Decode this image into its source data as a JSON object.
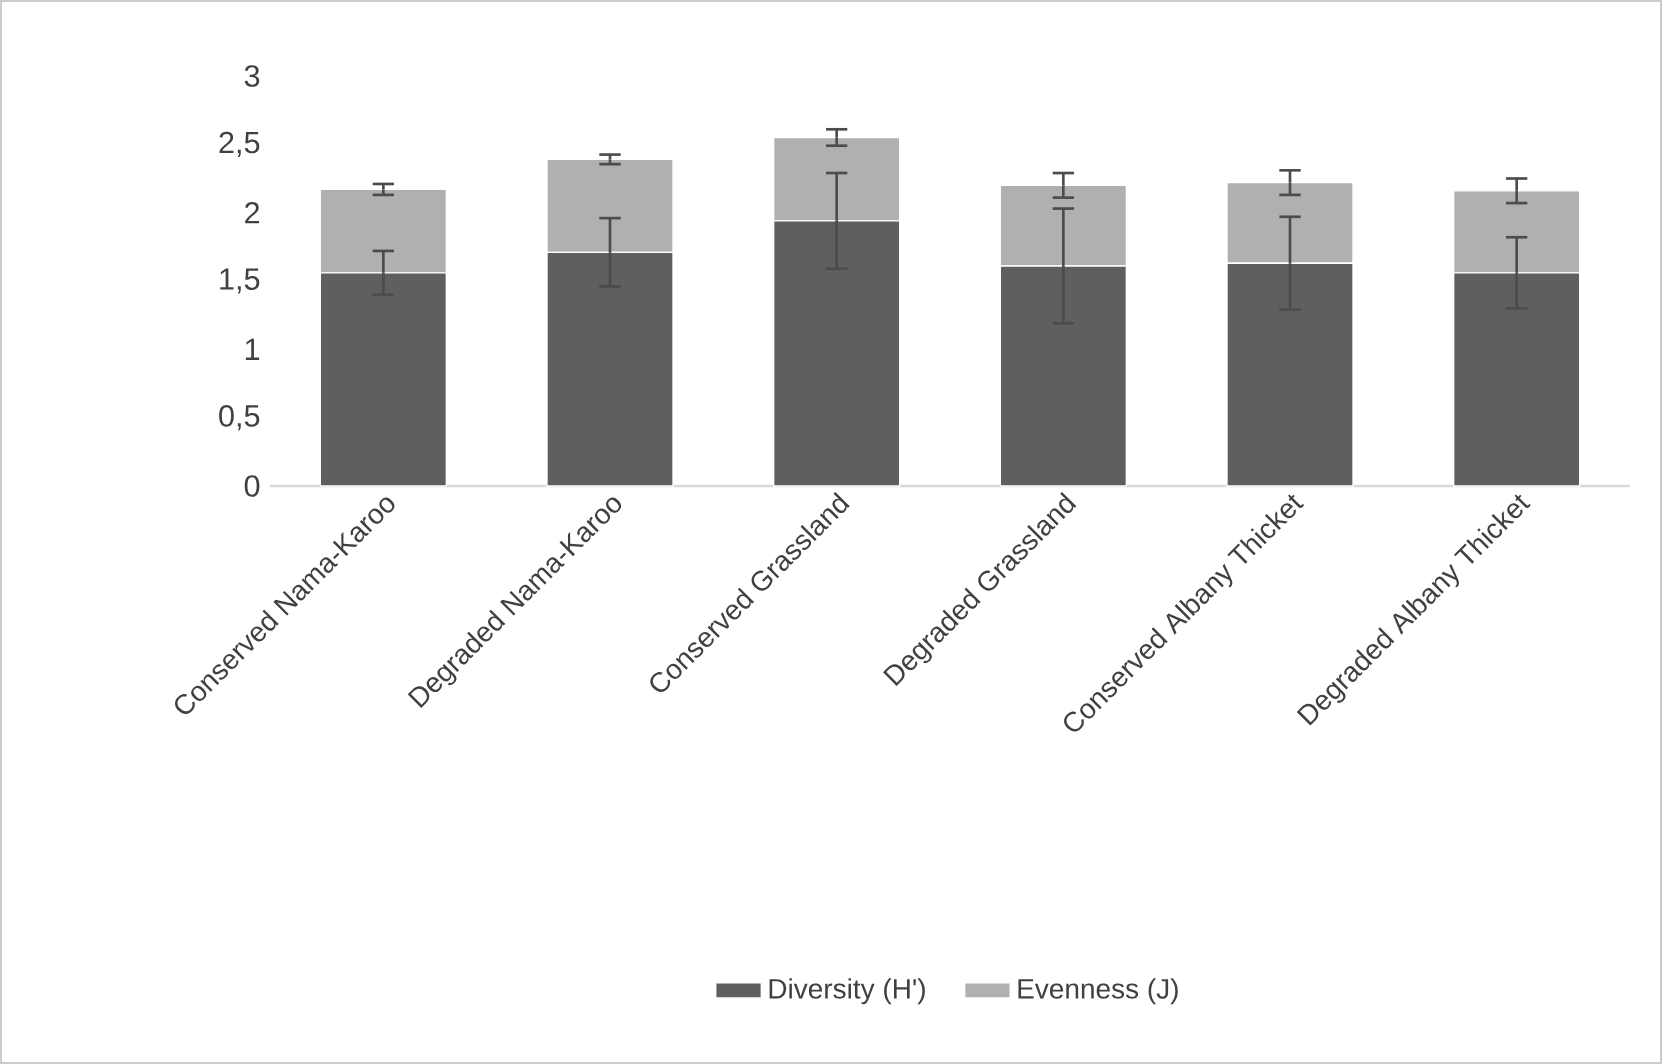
{
  "chart_data": {
    "type": "bar",
    "stacked": true,
    "categories": [
      "Conserved Nama-Karoo",
      "Degraded Nama-Karoo",
      "Conserved Grassland",
      "Degraded Grassland",
      "Conserved Albany Thicket",
      "Degraded Albany Thicket"
    ],
    "series": [
      {
        "name": "Diversity (H')",
        "color": "#5f5f5f",
        "values": [
          1.56,
          1.71,
          1.94,
          1.61,
          1.63,
          1.56
        ],
        "errors": [
          0.16,
          0.25,
          0.35,
          0.42,
          0.34,
          0.26
        ]
      },
      {
        "name": "Evenness (J)",
        "color": "#b0b0b0",
        "values": [
          0.61,
          0.68,
          0.61,
          0.59,
          0.59,
          0.6
        ],
        "errors": [
          0.04,
          0.035,
          0.06,
          0.09,
          0.09,
          0.09
        ]
      }
    ],
    "ylim": [
      0,
      3
    ],
    "yticks": [
      0,
      {
        "value": 0.5,
        "label": "0,5"
      },
      1,
      {
        "value": 1.5,
        "label": "1,5"
      },
      2,
      {
        "value": 2.5,
        "label": "2,5"
      },
      3
    ],
    "grid": false,
    "legend": "bottom"
  }
}
